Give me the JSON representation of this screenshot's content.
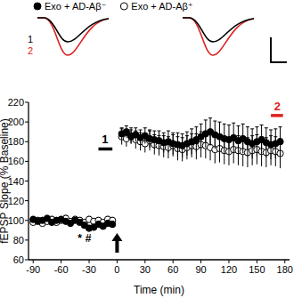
{
  "chart_data": {
    "type": "scatter",
    "x_label": "Time (min)",
    "y_label": "fEPSP Slope (% Baseline)",
    "xlim": [
      -95,
      185
    ],
    "ylim": [
      60,
      220
    ],
    "xticks": [
      -90,
      -60,
      -30,
      0,
      30,
      60,
      90,
      120,
      150,
      180
    ],
    "yticks": [
      60,
      80,
      100,
      120,
      140,
      160,
      180,
      200,
      220
    ],
    "legend": "top",
    "x": [
      -90,
      -85,
      -80,
      -75,
      -70,
      -65,
      -60,
      -55,
      -50,
      -45,
      -40,
      -35,
      -30,
      -25,
      -20,
      -15,
      -10,
      -5,
      5,
      10,
      15,
      20,
      25,
      30,
      35,
      40,
      45,
      50,
      55,
      60,
      65,
      70,
      75,
      80,
      85,
      90,
      95,
      100,
      105,
      110,
      115,
      120,
      125,
      130,
      135,
      140,
      145,
      150,
      155,
      160,
      165,
      170,
      175
    ],
    "series": [
      {
        "name": "Exo + AD-Aβ⁻",
        "color": "#000000",
        "marker": "circle-filled",
        "values": [
          101,
          99,
          100,
          102,
          98,
          100,
          101,
          99,
          97,
          100,
          98,
          95,
          92,
          93,
          96,
          94,
          97,
          96,
          188,
          190,
          185,
          187,
          184,
          186,
          183,
          182,
          181,
          179,
          180,
          178,
          177,
          176,
          178,
          180,
          182,
          185,
          188,
          190,
          187,
          185,
          183,
          182,
          184,
          181,
          183,
          180,
          178,
          180,
          182,
          179,
          177,
          178,
          180
        ],
        "errors": [
          3,
          3,
          3,
          3,
          3,
          3,
          3,
          3,
          3,
          3,
          3,
          3,
          3,
          3,
          3,
          3,
          3,
          3,
          6,
          6,
          7,
          7,
          8,
          8,
          9,
          9,
          10,
          10,
          11,
          11,
          12,
          12,
          12,
          13,
          13,
          13,
          14,
          14,
          14,
          15,
          15,
          15,
          15,
          15,
          15,
          15,
          15,
          15,
          15,
          15,
          15,
          15,
          15
        ]
      },
      {
        "name": "Exo + AD-Aβ⁺",
        "color": "#000000",
        "marker": "circle-open",
        "values": [
          98,
          100,
          97,
          99,
          101,
          98,
          100,
          102,
          99,
          101,
          100,
          98,
          101,
          99,
          100,
          98,
          101,
          100,
          185,
          183,
          186,
          182,
          180,
          178,
          181,
          177,
          176,
          175,
          174,
          176,
          173,
          172,
          174,
          176,
          175,
          177,
          176,
          174,
          172,
          173,
          171,
          170,
          172,
          171,
          170,
          169,
          171,
          172,
          170,
          169,
          171,
          170,
          168
        ],
        "errors": [
          3,
          3,
          3,
          3,
          3,
          3,
          3,
          3,
          3,
          3,
          3,
          3,
          3,
          3,
          3,
          3,
          3,
          3,
          8,
          8,
          8,
          9,
          9,
          9,
          10,
          10,
          10,
          11,
          11,
          11,
          12,
          12,
          12,
          12,
          13,
          13,
          13,
          13,
          14,
          14,
          14,
          14,
          14,
          15,
          15,
          15,
          15,
          15,
          15,
          15,
          15,
          15,
          15
        ]
      }
    ],
    "stimulus_time": 0,
    "annotations": [
      {
        "text": "1",
        "x": -13,
        "y": 178,
        "x_range": [
          -20,
          -5
        ],
        "color": "#000000"
      },
      {
        "text": "2",
        "x": 172,
        "y": 212,
        "x_range": [
          165,
          178
        ],
        "color": "#e02020"
      },
      {
        "text": "*",
        "x": -40,
        "y": 78,
        "color": "#000000"
      },
      {
        "text": "#",
        "x": -31,
        "y": 78,
        "color": "#000000"
      }
    ],
    "inset": {
      "labels": [
        "1",
        "2"
      ],
      "colors": [
        "#000000",
        "#e02020"
      ]
    }
  }
}
